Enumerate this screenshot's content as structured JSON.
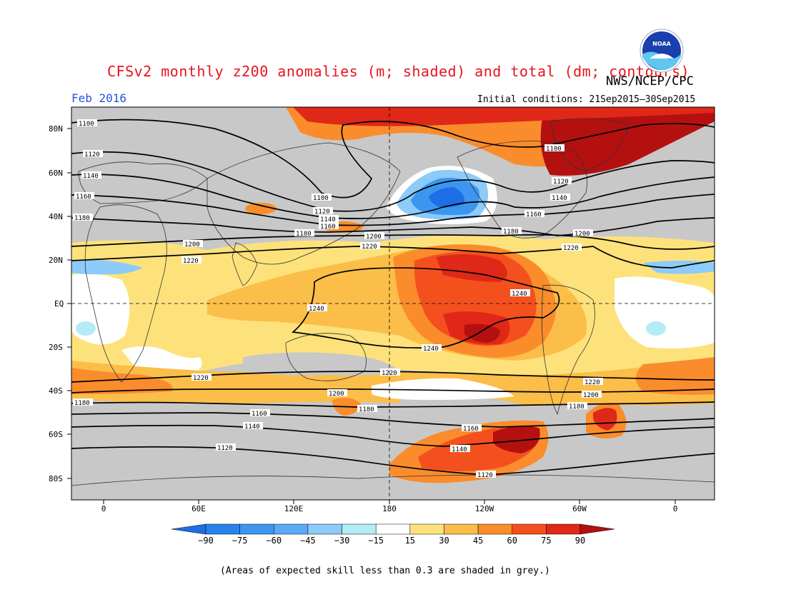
{
  "header": {
    "title": "CFSv2 monthly z200 anomalies (m; shaded) and total (dm; contours)",
    "org": "NWS/NCEP/CPC",
    "month": "Feb 2016",
    "initial_conditions": "Initial conditions: 21Sep2015–30Sep2015",
    "logo_text": "NOAA"
  },
  "map": {
    "lat_labels": [
      "80N",
      "60N",
      "40N",
      "20N",
      "EQ",
      "20S",
      "40S",
      "60S",
      "80S"
    ],
    "lon_labels": [
      "0",
      "60E",
      "120E",
      "180",
      "120W",
      "60W",
      "0"
    ],
    "contour_labels": [
      "1100",
      "1120",
      "1140",
      "1160",
      "1180",
      "1200",
      "1220",
      "1240"
    ],
    "skill_mask_color": "#c8c8c8"
  },
  "colorbar": {
    "ticks": [
      "−90",
      "−75",
      "−60",
      "−45",
      "−30",
      "−15",
      "15",
      "30",
      "45",
      "60",
      "75",
      "90"
    ],
    "colors": [
      "#1e6ee6",
      "#2882ec",
      "#3c96f0",
      "#5aaaf6",
      "#8ccbfa",
      "#b4ecf6",
      "#ffffff",
      "#fde27c",
      "#fbbe48",
      "#fa8c2c",
      "#f4501e",
      "#e02818",
      "#b41010"
    ]
  },
  "footnote": "(Areas of expected skill less than 0.3 are shaded in grey.)"
}
